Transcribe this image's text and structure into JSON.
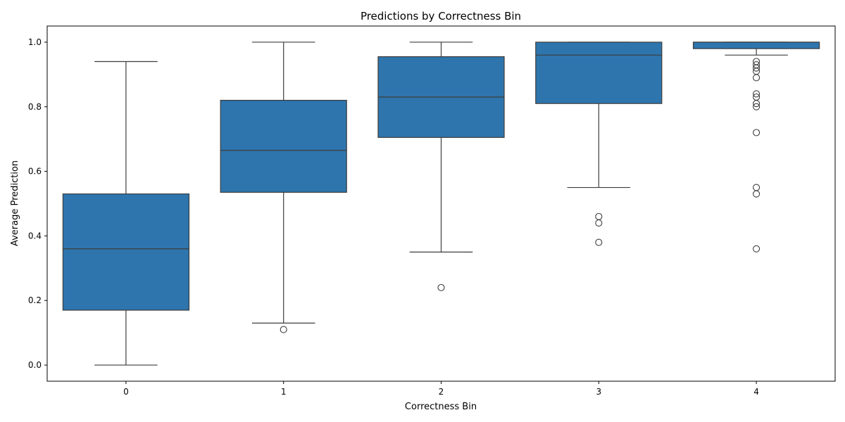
{
  "chart_data": {
    "type": "box",
    "title": "Predictions by Correctness Bin",
    "xlabel": "Correctness Bin",
    "ylabel": "Average Prediction",
    "ylim": [
      -0.05,
      1.05
    ],
    "yticks": [
      "0.0",
      "0.2",
      "0.4",
      "0.6",
      "0.8",
      "1.0"
    ],
    "grid": false,
    "color": "#2e75ad",
    "edge_color": "#3d3d3d",
    "categories": [
      "0",
      "1",
      "2",
      "3",
      "4"
    ],
    "boxes": [
      {
        "category": "0",
        "whisker_low": 0.0,
        "q1": 0.17,
        "median": 0.36,
        "q3": 0.53,
        "whisker_high": 0.94,
        "outliers": []
      },
      {
        "category": "1",
        "whisker_low": 0.13,
        "q1": 0.535,
        "median": 0.665,
        "q3": 0.82,
        "whisker_high": 1.0,
        "outliers": [
          0.11
        ]
      },
      {
        "category": "2",
        "whisker_low": 0.35,
        "q1": 0.705,
        "median": 0.83,
        "q3": 0.955,
        "whisker_high": 1.0,
        "outliers": [
          0.24
        ]
      },
      {
        "category": "3",
        "whisker_low": 0.55,
        "q1": 0.81,
        "median": 0.96,
        "q3": 1.0,
        "whisker_high": 1.0,
        "outliers": [
          0.46,
          0.44,
          0.38
        ]
      },
      {
        "category": "4",
        "whisker_low": 0.96,
        "q1": 0.98,
        "median": 1.0,
        "q3": 1.0,
        "whisker_high": 1.0,
        "outliers": [
          0.94,
          0.93,
          0.92,
          0.91,
          0.89,
          0.84,
          0.83,
          0.81,
          0.8,
          0.72,
          0.55,
          0.53,
          0.36
        ]
      }
    ]
  }
}
